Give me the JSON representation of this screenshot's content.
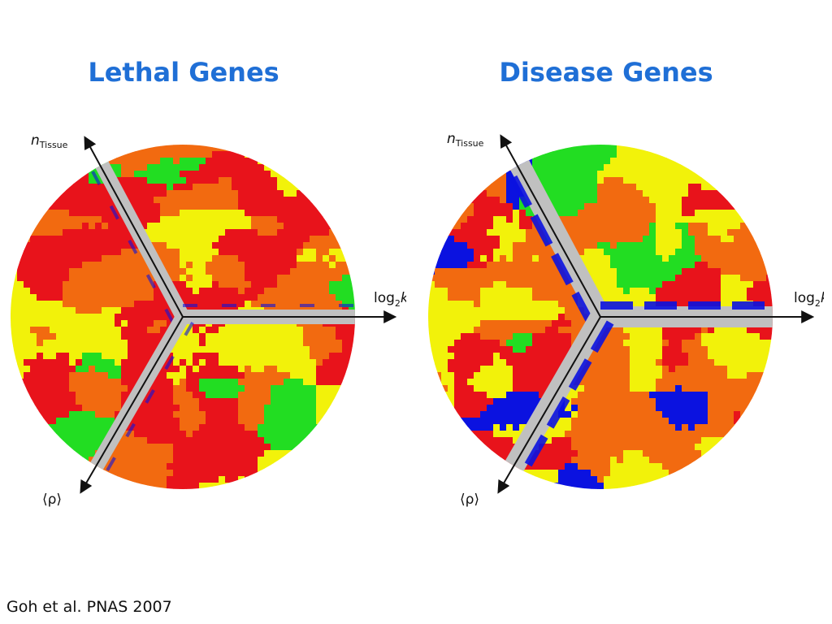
{
  "titles": {
    "left": "Lethal Genes",
    "right": "Disease Genes"
  },
  "axis_labels": {
    "n_main": "n",
    "n_sub": "Tissue",
    "log_main": "log",
    "log_sub": "2",
    "log_tail": "k",
    "rho": "⟨ρ⟩"
  },
  "citation": "Goh et al. PNAS 2007",
  "colors": {
    "red": "#e8131b",
    "orange": "#f26a10",
    "yellow": "#f2f20a",
    "green": "#22dd22",
    "blue": "#0b12e0",
    "gray": "#c0c0c0",
    "title_blue": "#1f6fd6"
  },
  "maps": [
    {
      "id": "lethal",
      "seed": 11,
      "weights": {
        "red": 0.26,
        "orange": 0.24,
        "yellow": 0.32,
        "green": 0.13,
        "blue": 0.05
      }
    },
    {
      "id": "disease",
      "seed": 29,
      "weights": {
        "red": 0.22,
        "orange": 0.26,
        "yellow": 0.26,
        "green": 0.12,
        "blue": 0.14
      }
    }
  ]
}
